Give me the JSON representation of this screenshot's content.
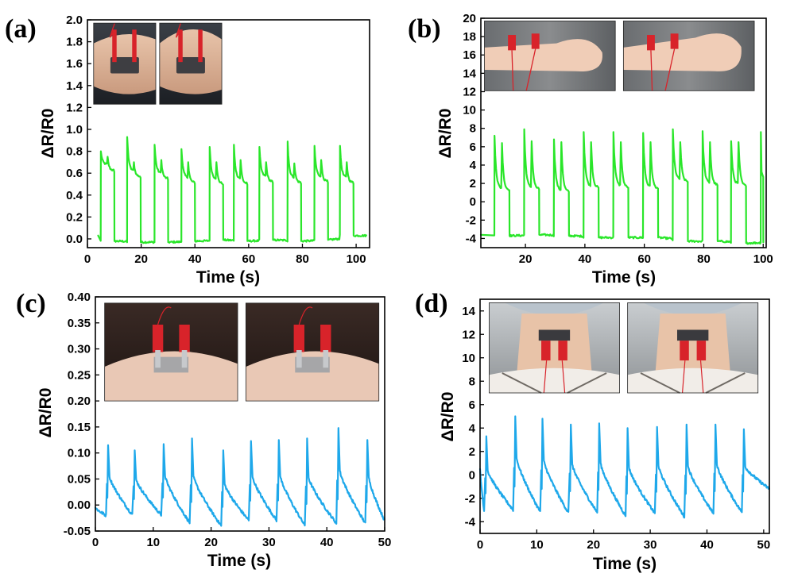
{
  "chart_data": [
    {
      "type": "line",
      "panel_label": "(a)",
      "xlabel": "Time (s)",
      "ylabel": "ΔR/R0",
      "xlim": [
        0,
        105
      ],
      "ylim": [
        -0.08,
        2.0
      ],
      "xticks": [
        0,
        20,
        40,
        60,
        80,
        100
      ],
      "yticks": [
        0.0,
        0.2,
        0.4,
        0.6,
        0.8,
        1.0,
        1.2,
        1.4,
        1.6,
        1.8,
        2.0
      ],
      "ytick_decimals": 1,
      "color": "#2ae62a",
      "pattern": "square",
      "cycle_starts": [
        5.0,
        14.8,
        25.0,
        35.0,
        45.5,
        54.5,
        64.0,
        74.5,
        84.5,
        94.0
      ],
      "cycle_on_durations": [
        5.0,
        5.0,
        5.0,
        5.0,
        5.0,
        5.0,
        5.0,
        5.0,
        5.0,
        5.0
      ],
      "cycle_peaks": [
        0.8,
        0.93,
        0.86,
        0.82,
        0.84,
        0.86,
        0.84,
        0.89,
        0.85,
        0.85
      ],
      "cycle_plateaus": [
        0.68,
        0.62,
        0.6,
        0.56,
        0.55,
        0.55,
        0.57,
        0.56,
        0.57,
        0.56
      ],
      "cycle_end_peaks": [
        0.75,
        0.7,
        0.72,
        0.7,
        0.7,
        0.72,
        0.7,
        0.69,
        0.72,
        0.7
      ],
      "baseline": [
        -0.02,
        -0.03,
        -0.03,
        -0.02,
        -0.01,
        -0.02,
        -0.01,
        -0.02,
        -0.01,
        0.03
      ],
      "trace_start": [
        4.0,
        0.03
      ],
      "trace_end": 104,
      "inset": {
        "x0": 2.3,
        "x1": 50.0,
        "ym": 1.23,
        "ytop": 1.97,
        "photos": 2,
        "scene": "arm"
      }
    },
    {
      "type": "line",
      "panel_label": "(b)",
      "xlabel": "Time (s)",
      "ylabel": "ΔR/R0",
      "xlim": [
        5,
        101
      ],
      "ylim": [
        -5,
        20
      ],
      "xticks": [
        20,
        40,
        60,
        80,
        100
      ],
      "yticks": [
        -4,
        -2,
        0,
        2,
        4,
        6,
        8,
        10,
        12,
        14,
        16,
        18,
        20
      ],
      "ytick_decimals": 0,
      "color": "#2ae62a",
      "pattern": "square",
      "cycle_starts": [
        9.6,
        19.6,
        29.6,
        39.6,
        49.6,
        59.6,
        69.6,
        79.6,
        89.2,
        99.2
      ],
      "cycle_on_durations": [
        5.0,
        5.0,
        5.0,
        5.0,
        5.0,
        5.0,
        5.0,
        5.0,
        5.0,
        0.8
      ],
      "cycle_peaks": [
        7.2,
        7.9,
        6.8,
        7.6,
        7.6,
        7.5,
        7.9,
        7.7,
        6.6,
        7.6
      ],
      "cycle_plateaus": [
        1.4,
        1.5,
        1.2,
        1.7,
        1.7,
        1.6,
        2.4,
        2.0,
        1.9,
        3.0
      ],
      "cycle_end_peaks": [
        6.4,
        6.6,
        6.5,
        6.5,
        6.5,
        6.5,
        6.5,
        6.5,
        6.5,
        3.0
      ],
      "baseline": [
        -3.7,
        -3.6,
        -3.7,
        -3.9,
        -3.9,
        -3.9,
        -4.3,
        -4.3,
        -4.5,
        -4.4
      ],
      "trace_start": [
        5.0,
        -3.6
      ],
      "trace_end": 100,
      "inset": {
        "x0": 6.2,
        "x1": 97.0,
        "ym": 12.1,
        "ytop": 19.7,
        "photos": 2,
        "scene": "wrist"
      }
    },
    {
      "type": "line",
      "panel_label": "(c)",
      "xlabel": "Time (s)",
      "ylabel": "ΔR/R0",
      "xlim": [
        0,
        50
      ],
      "ylim": [
        -0.05,
        0.4
      ],
      "xticks": [
        0,
        10,
        20,
        30,
        40,
        50
      ],
      "yticks": [
        -0.05,
        0.0,
        0.05,
        0.1,
        0.15,
        0.2,
        0.25,
        0.3,
        0.35,
        0.4
      ],
      "ytick_decimals": 2,
      "color": "#1ea8ea",
      "pattern": "spike",
      "spike_times": [
        2.2,
        6.8,
        11.8,
        16.7,
        22.1,
        26.9,
        31.7,
        36.6,
        42.0,
        47.0
      ],
      "spike_peaks": [
        0.115,
        0.105,
        0.117,
        0.128,
        0.105,
        0.123,
        0.125,
        0.128,
        0.148,
        0.125
      ],
      "spike_troughs": [
        -0.02,
        -0.02,
        -0.02,
        -0.035,
        -0.04,
        -0.03,
        -0.03,
        -0.04,
        -0.035,
        -0.035
      ],
      "trace_start": [
        0.0,
        -0.005
      ],
      "trace_end": 50,
      "end_value": -0.03,
      "inset": {
        "x0": 1.6,
        "x1": 49.0,
        "ym": 0.2,
        "ytop": 0.388,
        "photos": 2,
        "scene": "forehead"
      }
    },
    {
      "type": "line",
      "panel_label": "(d)",
      "xlabel": "Time (s)",
      "ylabel": "ΔR/R0",
      "xlim": [
        0,
        51
      ],
      "ylim": [
        -5,
        15
      ],
      "xticks": [
        0,
        10,
        20,
        30,
        40,
        50
      ],
      "yticks": [
        -4,
        -2,
        0,
        2,
        4,
        6,
        8,
        10,
        12,
        14
      ],
      "ytick_decimals": 0,
      "color": "#1ea8ea",
      "pattern": "spike",
      "spike_times": [
        1.1,
        6.2,
        11.0,
        16.0,
        21.0,
        26.0,
        31.2,
        36.4,
        41.5,
        46.5
      ],
      "spike_peaks": [
        3.3,
        5.0,
        4.8,
        4.3,
        4.4,
        4.0,
        4.1,
        4.3,
        4.3,
        3.9
      ],
      "spike_troughs": [
        -3.2,
        -3.0,
        -3.2,
        -3.3,
        -3.2,
        -3.5,
        -3.3,
        -3.6,
        -3.3,
        -3.2
      ],
      "trace_start": [
        0.0,
        0.5
      ],
      "trace_end": 51,
      "end_value": -1.2,
      "inset": {
        "x0": 1.6,
        "x1": 49.0,
        "ym": 7.0,
        "ytop": 14.7,
        "photos": 2,
        "scene": "neck"
      }
    }
  ]
}
